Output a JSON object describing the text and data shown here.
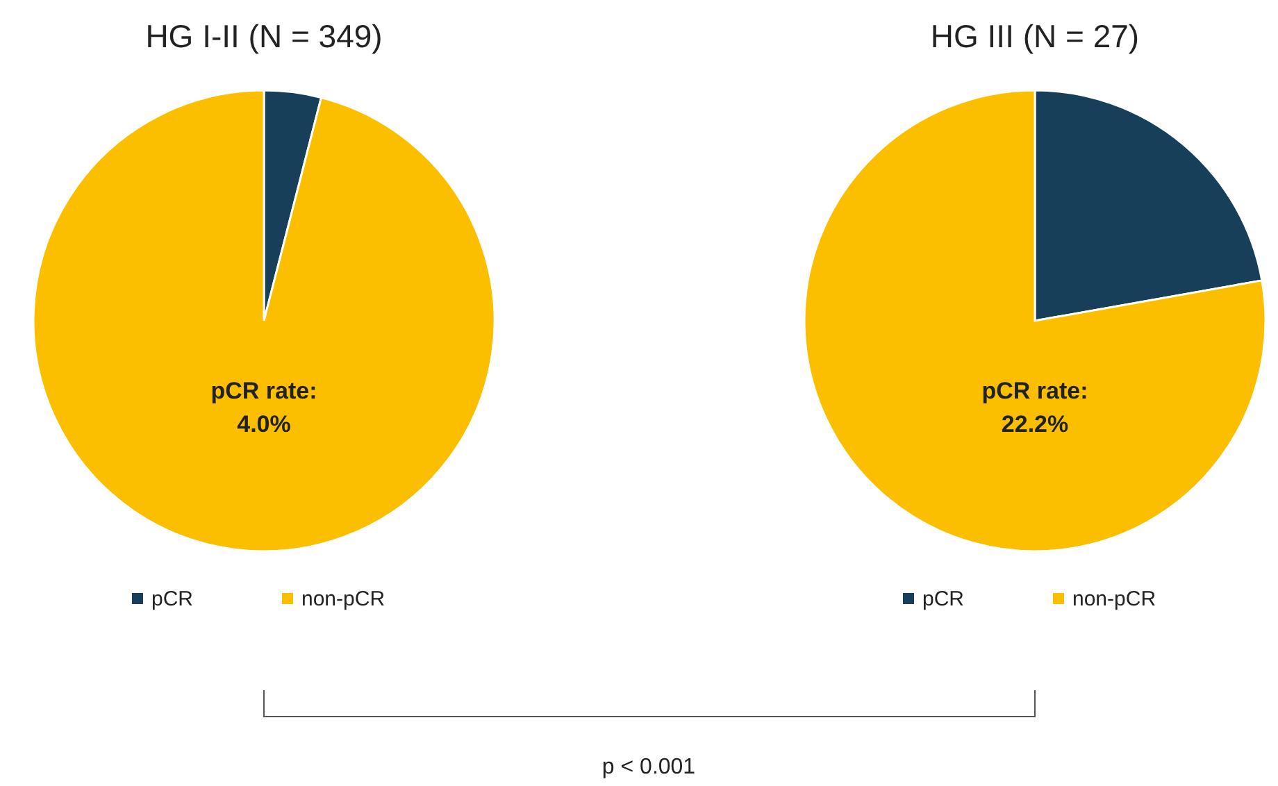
{
  "chart_data": [
    {
      "type": "pie",
      "title": "HG I-II (N = 349)",
      "categories": [
        "pCR",
        "non-pCR"
      ],
      "values": [
        4.0,
        96.0
      ],
      "colors": [
        "#173f5a",
        "#fbbf00"
      ],
      "annotations": [
        "pCR rate:",
        "4.0%"
      ],
      "legend": "bottom"
    },
    {
      "type": "pie",
      "title": "HG III (N = 27)",
      "categories": [
        "pCR",
        "non-pCR"
      ],
      "values": [
        22.2,
        77.8
      ],
      "colors": [
        "#173f5a",
        "#fbbf00"
      ],
      "annotations": [
        "pCR rate:",
        "22.2%"
      ],
      "legend": "bottom"
    },
    {
      "type": "other",
      "annotations": [
        "p < 0.001"
      ]
    }
  ]
}
